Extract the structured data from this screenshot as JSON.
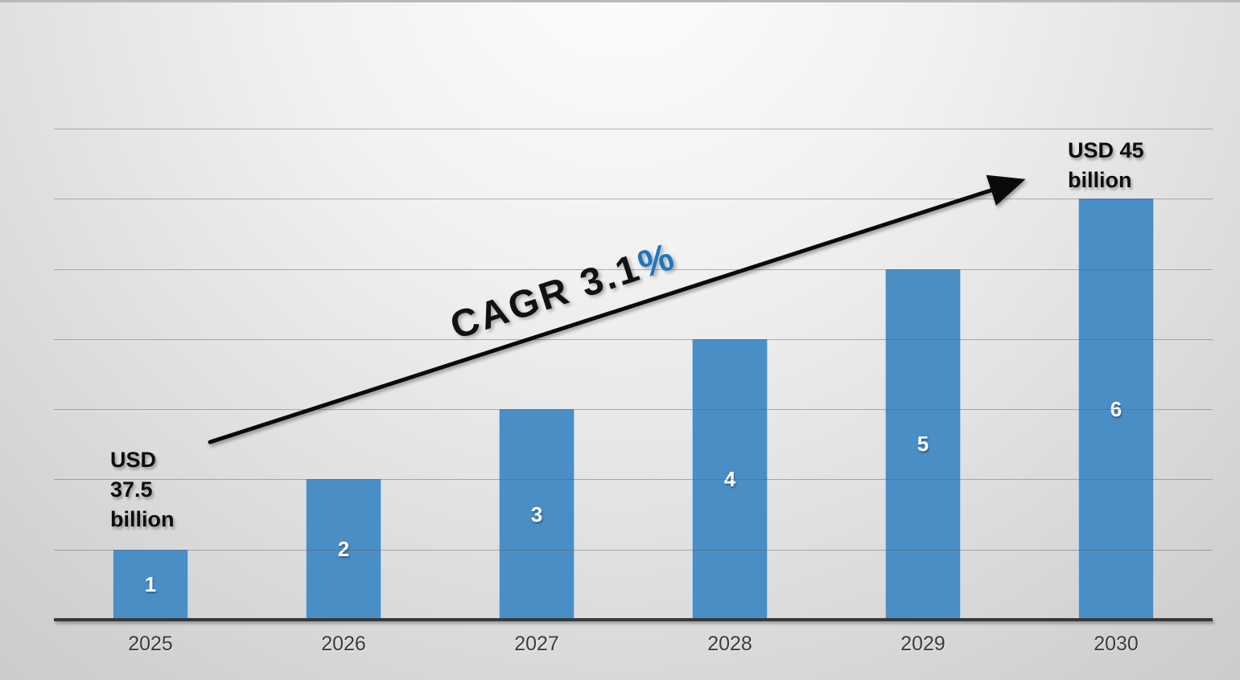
{
  "chart_data": {
    "type": "bar",
    "title": "",
    "xlabel": "",
    "ylabel": "",
    "categories": [
      "2025",
      "2026",
      "2027",
      "2028",
      "2029",
      "2030"
    ],
    "values": [
      1,
      2,
      3,
      4,
      5,
      6
    ],
    "bar_labels": [
      "1",
      "2",
      "3",
      "4",
      "5",
      "6"
    ],
    "ylim": [
      0,
      7
    ],
    "grid": true,
    "legend": "none",
    "annotations": {
      "start_value": {
        "lines": [
          "USD",
          "37.5",
          "billion"
        ]
      },
      "end_value": {
        "lines": [
          "USD 45",
          "billion"
        ]
      },
      "cagr": {
        "text": "CAGR 3.1",
        "suffix": "%"
      }
    },
    "colors": {
      "bar": "#4a8ec6",
      "cagr_suffix": "#1d76c2",
      "bar_value_label": "#ffffff",
      "axis": "#383838",
      "gridline": "#5f5f5f",
      "year_label": "#3d3d3d",
      "annotation_text": "#0d0d0d",
      "arrow": "#0a0a0a"
    }
  }
}
